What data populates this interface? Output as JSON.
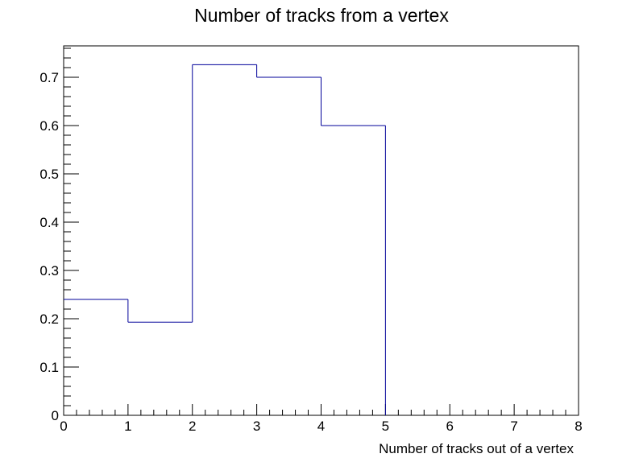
{
  "chart_data": {
    "type": "histogram",
    "title": "Number of tracks from a vertex",
    "xlabel": "Number of tracks out of a vertex",
    "ylabel": "",
    "bin_edges": [
      0,
      1,
      2,
      3,
      4,
      5,
      6,
      7,
      8
    ],
    "values": [
      0.24,
      0.193,
      0.726,
      0.7,
      0.6,
      0,
      0,
      0
    ],
    "xlim": [
      0,
      8
    ],
    "ylim": [
      0,
      0.765
    ],
    "x_ticks": [
      0,
      1,
      2,
      3,
      4,
      5,
      6,
      7,
      8
    ],
    "x_tick_labels": [
      "0",
      "1",
      "2",
      "3",
      "4",
      "5",
      "6",
      "7",
      "8"
    ],
    "y_ticks": [
      0,
      0.1,
      0.2,
      0.3,
      0.4,
      0.5,
      0.6,
      0.7
    ],
    "y_tick_labels": [
      "0",
      "0.1",
      "0.2",
      "0.3",
      "0.4",
      "0.5",
      "0.6",
      "0.7"
    ],
    "grid": false,
    "legend": "none",
    "line_color": "#000099",
    "axis_color": "#000000"
  }
}
